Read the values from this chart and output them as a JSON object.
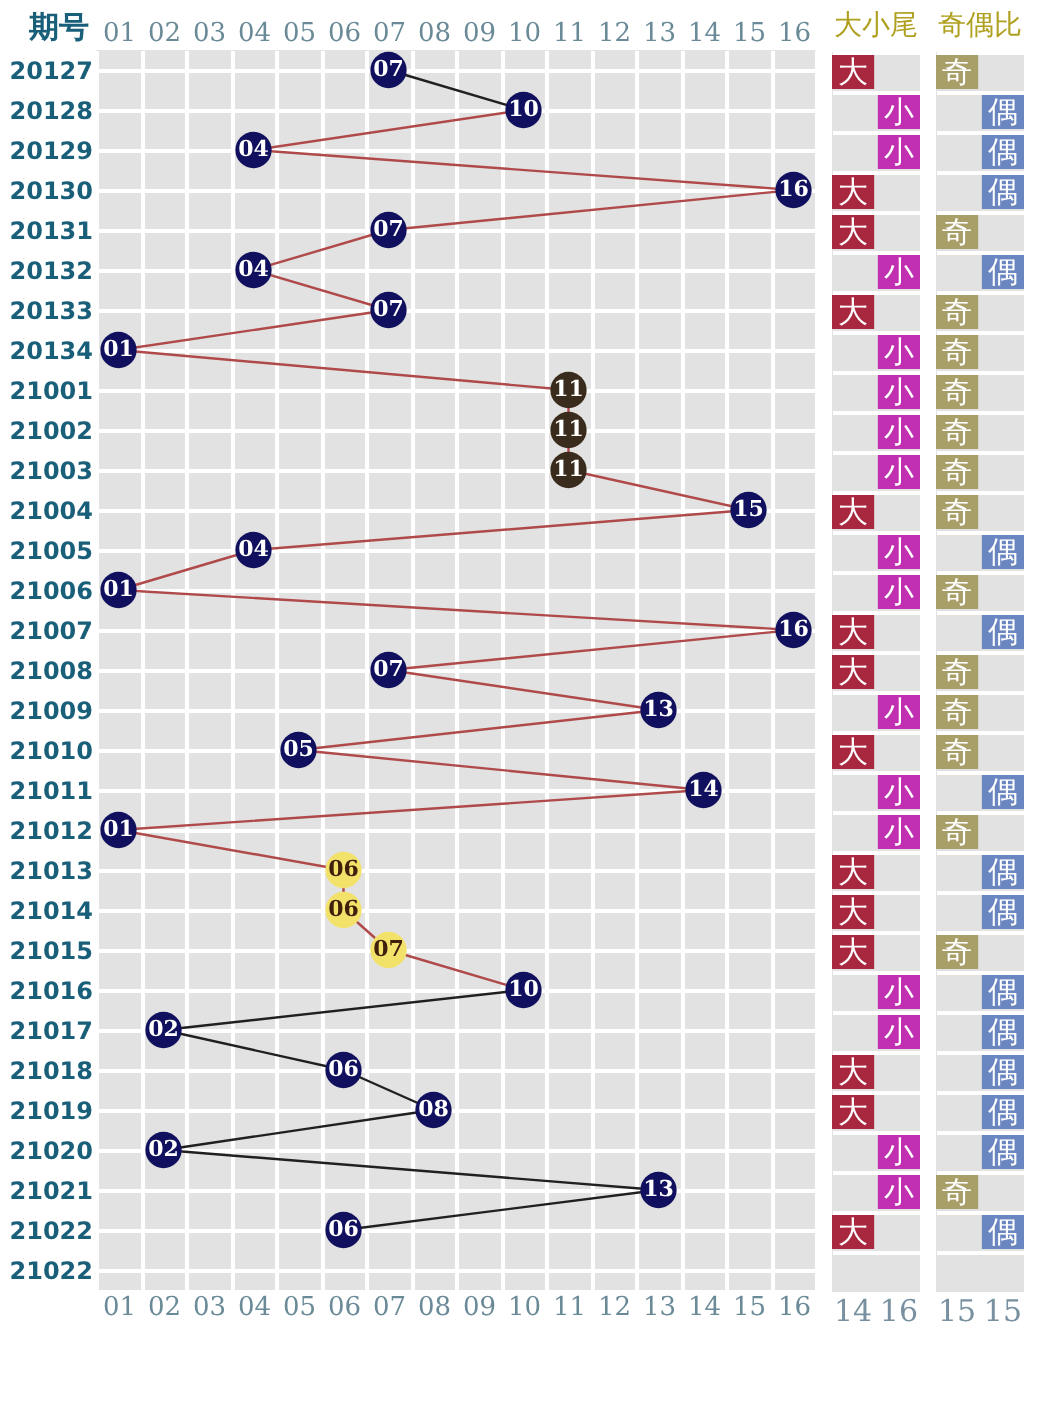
{
  "chart_data": [
    {
      "type": "line",
      "orientation": "horizontal",
      "ylabel": "期号",
      "grid": true,
      "categories": [
        "20127",
        "20128",
        "20129",
        "20130",
        "20131",
        "20132",
        "20133",
        "20134",
        "21001",
        "21002",
        "21003",
        "21004",
        "21005",
        "21006",
        "21007",
        "21008",
        "21009",
        "21010",
        "21011",
        "21012",
        "21013",
        "21014",
        "21015",
        "21016",
        "21017",
        "21018",
        "21019",
        "21020",
        "21021",
        "21022",
        "21022"
      ],
      "xlim": [
        0.5,
        16.5
      ],
      "xticks": [
        {
          "value": 1,
          "label": "01"
        },
        {
          "value": 2,
          "label": "02"
        },
        {
          "value": 3,
          "label": "03"
        },
        {
          "value": 4,
          "label": "04"
        },
        {
          "value": 5,
          "label": "05"
        },
        {
          "value": 6,
          "label": "06"
        },
        {
          "value": 7,
          "label": "07"
        },
        {
          "value": 8,
          "label": "08"
        },
        {
          "value": 9,
          "label": "09"
        },
        10,
        11,
        12,
        13,
        14,
        15,
        16
      ],
      "x2lim": [
        0.5,
        16.5
      ],
      "x2ticks": [
        {
          "value": 1,
          "label": "01"
        },
        {
          "value": 2,
          "label": "02"
        },
        {
          "value": 3,
          "label": "03"
        },
        {
          "value": 4,
          "label": "04"
        },
        {
          "value": 5,
          "label": "05"
        },
        {
          "value": 6,
          "label": "06"
        },
        {
          "value": 7,
          "label": "07"
        },
        {
          "value": 8,
          "label": "08"
        },
        {
          "value": 9,
          "label": "09"
        },
        10,
        11,
        12,
        13,
        14,
        15,
        16
      ],
      "series": [
        {
          "type": "line",
          "color": "#202020",
          "values": [
            7,
            10,
            null,
            null,
            null,
            null,
            null,
            null,
            null,
            null,
            null,
            null,
            null,
            null,
            null,
            null,
            null,
            null,
            null,
            null,
            null,
            null,
            null,
            null,
            null,
            null,
            null,
            null,
            null,
            null,
            null
          ]
        },
        {
          "type": "line",
          "color": "#b04a4a",
          "values": [
            null,
            10,
            4,
            16,
            7,
            4,
            7,
            1,
            11,
            11,
            11,
            15,
            4,
            1,
            16,
            7,
            13,
            5,
            14,
            1,
            6,
            6,
            7,
            10,
            null,
            null,
            null,
            null,
            null,
            null,
            null
          ]
        },
        {
          "type": "line",
          "color": "#202020",
          "values": [
            null,
            null,
            null,
            null,
            null,
            null,
            null,
            null,
            null,
            null,
            null,
            null,
            null,
            null,
            null,
            null,
            null,
            null,
            null,
            null,
            null,
            null,
            null,
            10,
            2,
            6,
            8,
            2,
            13,
            6,
            null
          ]
        },
        {
          "type": "scatter",
          "marker": "circle",
          "values": [
            7,
            10,
            4,
            16,
            7,
            4,
            7,
            1,
            11,
            11,
            11,
            15,
            4,
            1,
            16,
            7,
            13,
            5,
            14,
            1,
            6,
            6,
            7,
            10,
            2,
            6,
            8,
            2,
            13,
            6,
            null
          ],
          "colors": [
            "#10105e",
            "#10105e",
            "#10105e",
            "#10105e",
            "#10105e",
            "#10105e",
            "#10105e",
            "#10105e",
            "#3a2c1c",
            "#3a2c1c",
            "#3a2c1c",
            "#10105e",
            "#10105e",
            "#10105e",
            "#10105e",
            "#10105e",
            "#10105e",
            "#10105e",
            "#10105e",
            "#10105e",
            "#f2e26a",
            "#f2e26a",
            "#f2e26a",
            "#10105e",
            "#10105e",
            "#10105e",
            "#10105e",
            "#10105e",
            "#10105e",
            "#10105e",
            "#10105e"
          ],
          "value_labels": [
            "07",
            "10",
            "04",
            "16",
            "07",
            "04",
            "07",
            "01",
            "11",
            "11",
            "11",
            "15",
            "04",
            "01",
            "16",
            "07",
            "13",
            "05",
            "14",
            "01",
            "06",
            "06",
            "07",
            "10",
            "02",
            "06",
            "08",
            "02",
            "13",
            "06",
            null
          ]
        }
      ]
    },
    {
      "type": "other",
      "title": "大小尾",
      "totals": [
        "14",
        "16"
      ],
      "colors": [
        "#a82840",
        "#c030b0"
      ],
      "cell_labels": [
        [
          "大",
          null
        ],
        [
          null,
          "小"
        ],
        [
          null,
          "小"
        ],
        [
          "大",
          null
        ],
        [
          "大",
          null
        ],
        [
          null,
          "小"
        ],
        [
          "大",
          null
        ],
        [
          null,
          "小"
        ],
        [
          null,
          "小"
        ],
        [
          null,
          "小"
        ],
        [
          null,
          "小"
        ],
        [
          "大",
          null
        ],
        [
          null,
          "小"
        ],
        [
          null,
          "小"
        ],
        [
          "大",
          null
        ],
        [
          "大",
          null
        ],
        [
          null,
          "小"
        ],
        [
          "大",
          null
        ],
        [
          null,
          "小"
        ],
        [
          null,
          "小"
        ],
        [
          "大",
          null
        ],
        [
          "大",
          null
        ],
        [
          "大",
          null
        ],
        [
          null,
          "小"
        ],
        [
          null,
          "小"
        ],
        [
          "大",
          null
        ],
        [
          "大",
          null
        ],
        [
          null,
          "小"
        ],
        [
          null,
          "小"
        ],
        [
          "大",
          null
        ]
      ]
    },
    {
      "type": "other",
      "title": "奇偶比",
      "totals": [
        "15",
        "15"
      ],
      "colors": [
        "#a89e68",
        "#6a86c0"
      ],
      "cell_labels": [
        [
          "奇",
          null
        ],
        [
          null,
          "偶"
        ],
        [
          null,
          "偶"
        ],
        [
          null,
          "偶"
        ],
        [
          "奇",
          null
        ],
        [
          null,
          "偶"
        ],
        [
          "奇",
          null
        ],
        [
          "奇",
          null
        ],
        [
          "奇",
          null
        ],
        [
          "奇",
          null
        ],
        [
          "奇",
          null
        ],
        [
          "奇",
          null
        ],
        [
          null,
          "偶"
        ],
        [
          "奇",
          null
        ],
        [
          null,
          "偶"
        ],
        [
          "奇",
          null
        ],
        [
          "奇",
          null
        ],
        [
          "奇",
          null
        ],
        [
          null,
          "偶"
        ],
        [
          "奇",
          null
        ],
        [
          null,
          "偶"
        ],
        [
          null,
          "偶"
        ],
        [
          "奇",
          null
        ],
        [
          null,
          "偶"
        ],
        [
          null,
          "偶"
        ],
        [
          null,
          "偶"
        ],
        [
          null,
          "偶"
        ],
        [
          null,
          "偶"
        ],
        [
          "奇",
          null
        ],
        [
          null,
          "偶"
        ]
      ]
    }
  ]
}
